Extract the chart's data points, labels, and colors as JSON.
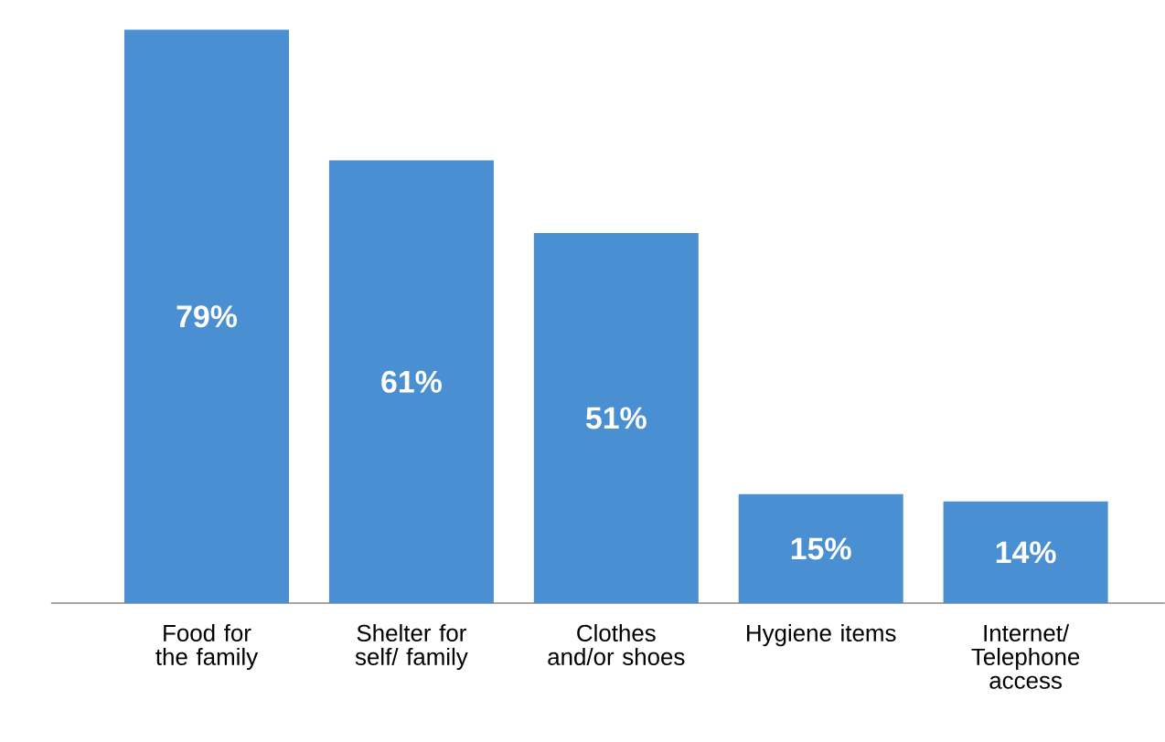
{
  "chart_data": {
    "type": "bar",
    "categories": [
      "Food for the family",
      "Shelter for self/ family",
      "Clothes and/or shoes",
      "Hygiene items",
      "Internet/ Telephone access"
    ],
    "values": [
      79,
      61,
      51,
      15,
      14
    ],
    "value_labels": [
      "79%",
      "61%",
      "51%",
      "15%",
      "14%"
    ],
    "color": "#4a8fd1"
  }
}
